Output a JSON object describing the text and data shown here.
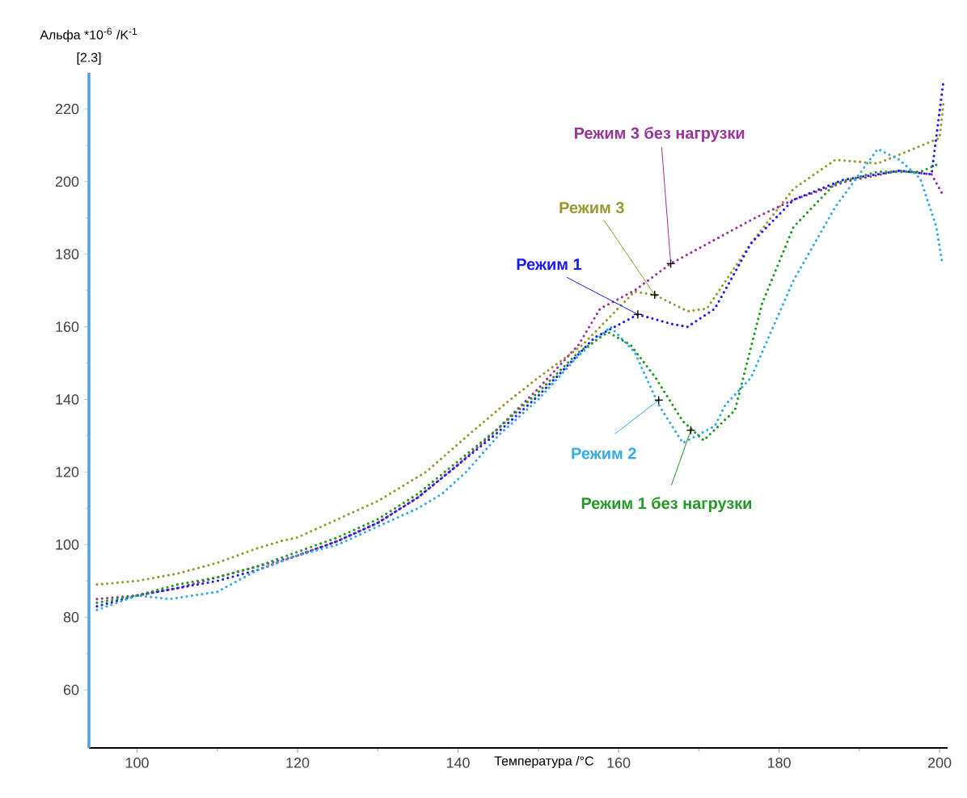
{
  "chart_data": {
    "type": "line",
    "xlabel": "Температура /°C",
    "ylabel": "Альфа *10$^{-6}$ /K$^{-1}$",
    "xlim": [
      94,
      201
    ],
    "ylim": [
      44,
      230
    ],
    "xticks": [
      100,
      120,
      140,
      160,
      180,
      200
    ],
    "yticks": [
      60,
      80,
      100,
      120,
      140,
      160,
      180,
      200,
      220
    ],
    "line_style": "dotted",
    "series": [
      {
        "color": "#993399",
        "x": [
          95,
          100,
          105,
          110,
          115,
          120,
          125,
          130,
          135,
          140,
          145,
          150,
          155,
          157.7,
          162,
          166.5,
          172,
          177,
          181.8,
          188.3,
          195,
          199,
          200.5
        ],
        "values": [
          85,
          86,
          88,
          91,
          94,
          97,
          101,
          106,
          113,
          122,
          132,
          143,
          155,
          165,
          170,
          177.4,
          184,
          190,
          195,
          200,
          203,
          202,
          196
        ]
      },
      {
        "color": "#999933",
        "x": [
          95,
          100,
          105,
          110,
          115,
          118,
          120,
          125,
          130,
          136,
          141.7,
          146.2,
          150,
          155.5,
          162,
          164.5,
          168.6,
          171,
          176.5,
          181.8,
          187,
          192.3,
          197.6,
          200,
          200.5
        ],
        "values": [
          89,
          90,
          92,
          95,
          99,
          101,
          102,
          107,
          112,
          120,
          131,
          139.4,
          146,
          155,
          169.7,
          168.8,
          164.3,
          165,
          183,
          198,
          206,
          205,
          209.8,
          212,
          222
        ]
      },
      {
        "color": "#1a1aff",
        "x": [
          95,
          100,
          105,
          110,
          115,
          120,
          125,
          130,
          135,
          140,
          145,
          150,
          157,
          162.4,
          166.6,
          168.6,
          172,
          176.5,
          181.8,
          188,
          195,
          199,
          200.5
        ],
        "values": [
          83,
          86,
          88,
          90,
          93,
          97,
          101,
          106,
          113,
          122,
          131,
          141,
          157,
          163.4,
          160.8,
          160,
          165,
          183,
          195,
          200.5,
          203,
          202,
          228
        ]
      },
      {
        "color": "#33aaee",
        "x": [
          95,
          100,
          104,
          110,
          115,
          120,
          125,
          130,
          135,
          138,
          141,
          145,
          150,
          155,
          159,
          162,
          165,
          168,
          172,
          173.3,
          176.5,
          181.8,
          187,
          192.3,
          195,
          197.6,
          199.6,
          200.3
        ],
        "values": [
          82,
          86,
          85,
          87,
          93,
          97,
          100,
          105,
          110,
          114,
          120,
          130,
          140,
          152,
          160,
          153,
          138.5,
          128,
          132.7,
          138.5,
          146,
          172.8,
          193,
          209,
          206,
          200.8,
          187.5,
          178
        ]
      },
      {
        "color": "#229922",
        "x": [
          95,
          100,
          105,
          110,
          115,
          120,
          125,
          130,
          135,
          140,
          145,
          150,
          155,
          158.7,
          161.5,
          164.6,
          168,
          170.6,
          174.5,
          177.9,
          181.8,
          187,
          192.3,
          197.6,
          200
        ],
        "values": [
          84,
          86,
          89,
          91,
          94,
          98,
          102,
          107,
          114,
          123,
          132,
          142,
          153,
          158.5,
          155,
          146,
          134,
          128.7,
          137,
          166.5,
          187.5,
          199.5,
          202.7,
          202.7,
          205
        ]
      }
    ],
    "annotations": [
      {
        "text": "Режим 3 без нагрузки",
        "x": 166.5,
        "y": 177.4
      },
      {
        "text": "Режим 3",
        "x": 164.5,
        "y": 168.8
      },
      {
        "text": "Режим 1",
        "x": 162.4,
        "y": 163.4
      },
      {
        "text": "Режим 2",
        "x": 165,
        "y": 139.8
      },
      {
        "text": "Режим 1 без нагрузки",
        "x": 169,
        "y": 131.5
      },
      "[2.3]"
    ]
  }
}
